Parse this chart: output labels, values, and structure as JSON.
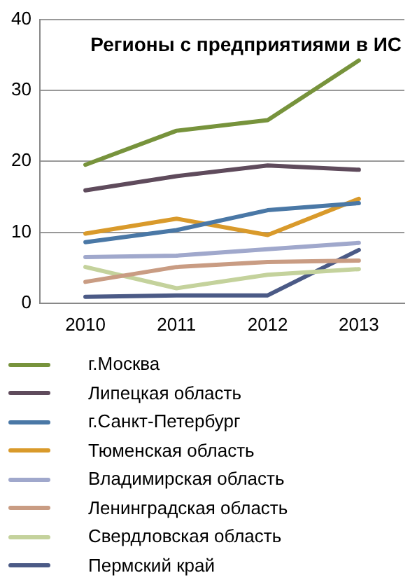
{
  "chart_data": {
    "type": "line",
    "title": "Регионы с предприятиями в ИС",
    "categories": [
      "2010",
      "2011",
      "2012",
      "2013"
    ],
    "series": [
      {
        "name": "г.Москва",
        "color": "#77933c",
        "values": [
          19.5,
          24.3,
          25.8,
          34.2
        ]
      },
      {
        "name": "Липецкая область",
        "color": "#5f4b5c",
        "values": [
          15.9,
          17.9,
          19.4,
          18.8
        ]
      },
      {
        "name": "г.Санкт-Петербург",
        "color": "#4a78a6",
        "values": [
          8.6,
          10.3,
          13.1,
          14.1
        ]
      },
      {
        "name": "Тюменская область",
        "color": "#d99a2b",
        "values": [
          9.8,
          11.9,
          9.6,
          14.7
        ]
      },
      {
        "name": "Владимирская область",
        "color": "#a0a8cc",
        "values": [
          6.5,
          6.7,
          7.6,
          8.5
        ]
      },
      {
        "name": "Ленинградская область",
        "color": "#c99c83",
        "values": [
          3,
          5.1,
          5.8,
          6
        ]
      },
      {
        "name": "Свердловская область",
        "color": "#c4d29c",
        "values": [
          5.1,
          2.1,
          4,
          4.8
        ]
      },
      {
        "name": "Пермский край",
        "color": "#4b5a86",
        "values": [
          0.9,
          1.1,
          1.1,
          7.5
        ]
      }
    ],
    "ylim": [
      0,
      40
    ],
    "yticks": [
      0,
      10,
      20,
      30,
      40
    ],
    "grid": "y",
    "legend": "bottom",
    "marker": "none",
    "line_style": "solid"
  }
}
